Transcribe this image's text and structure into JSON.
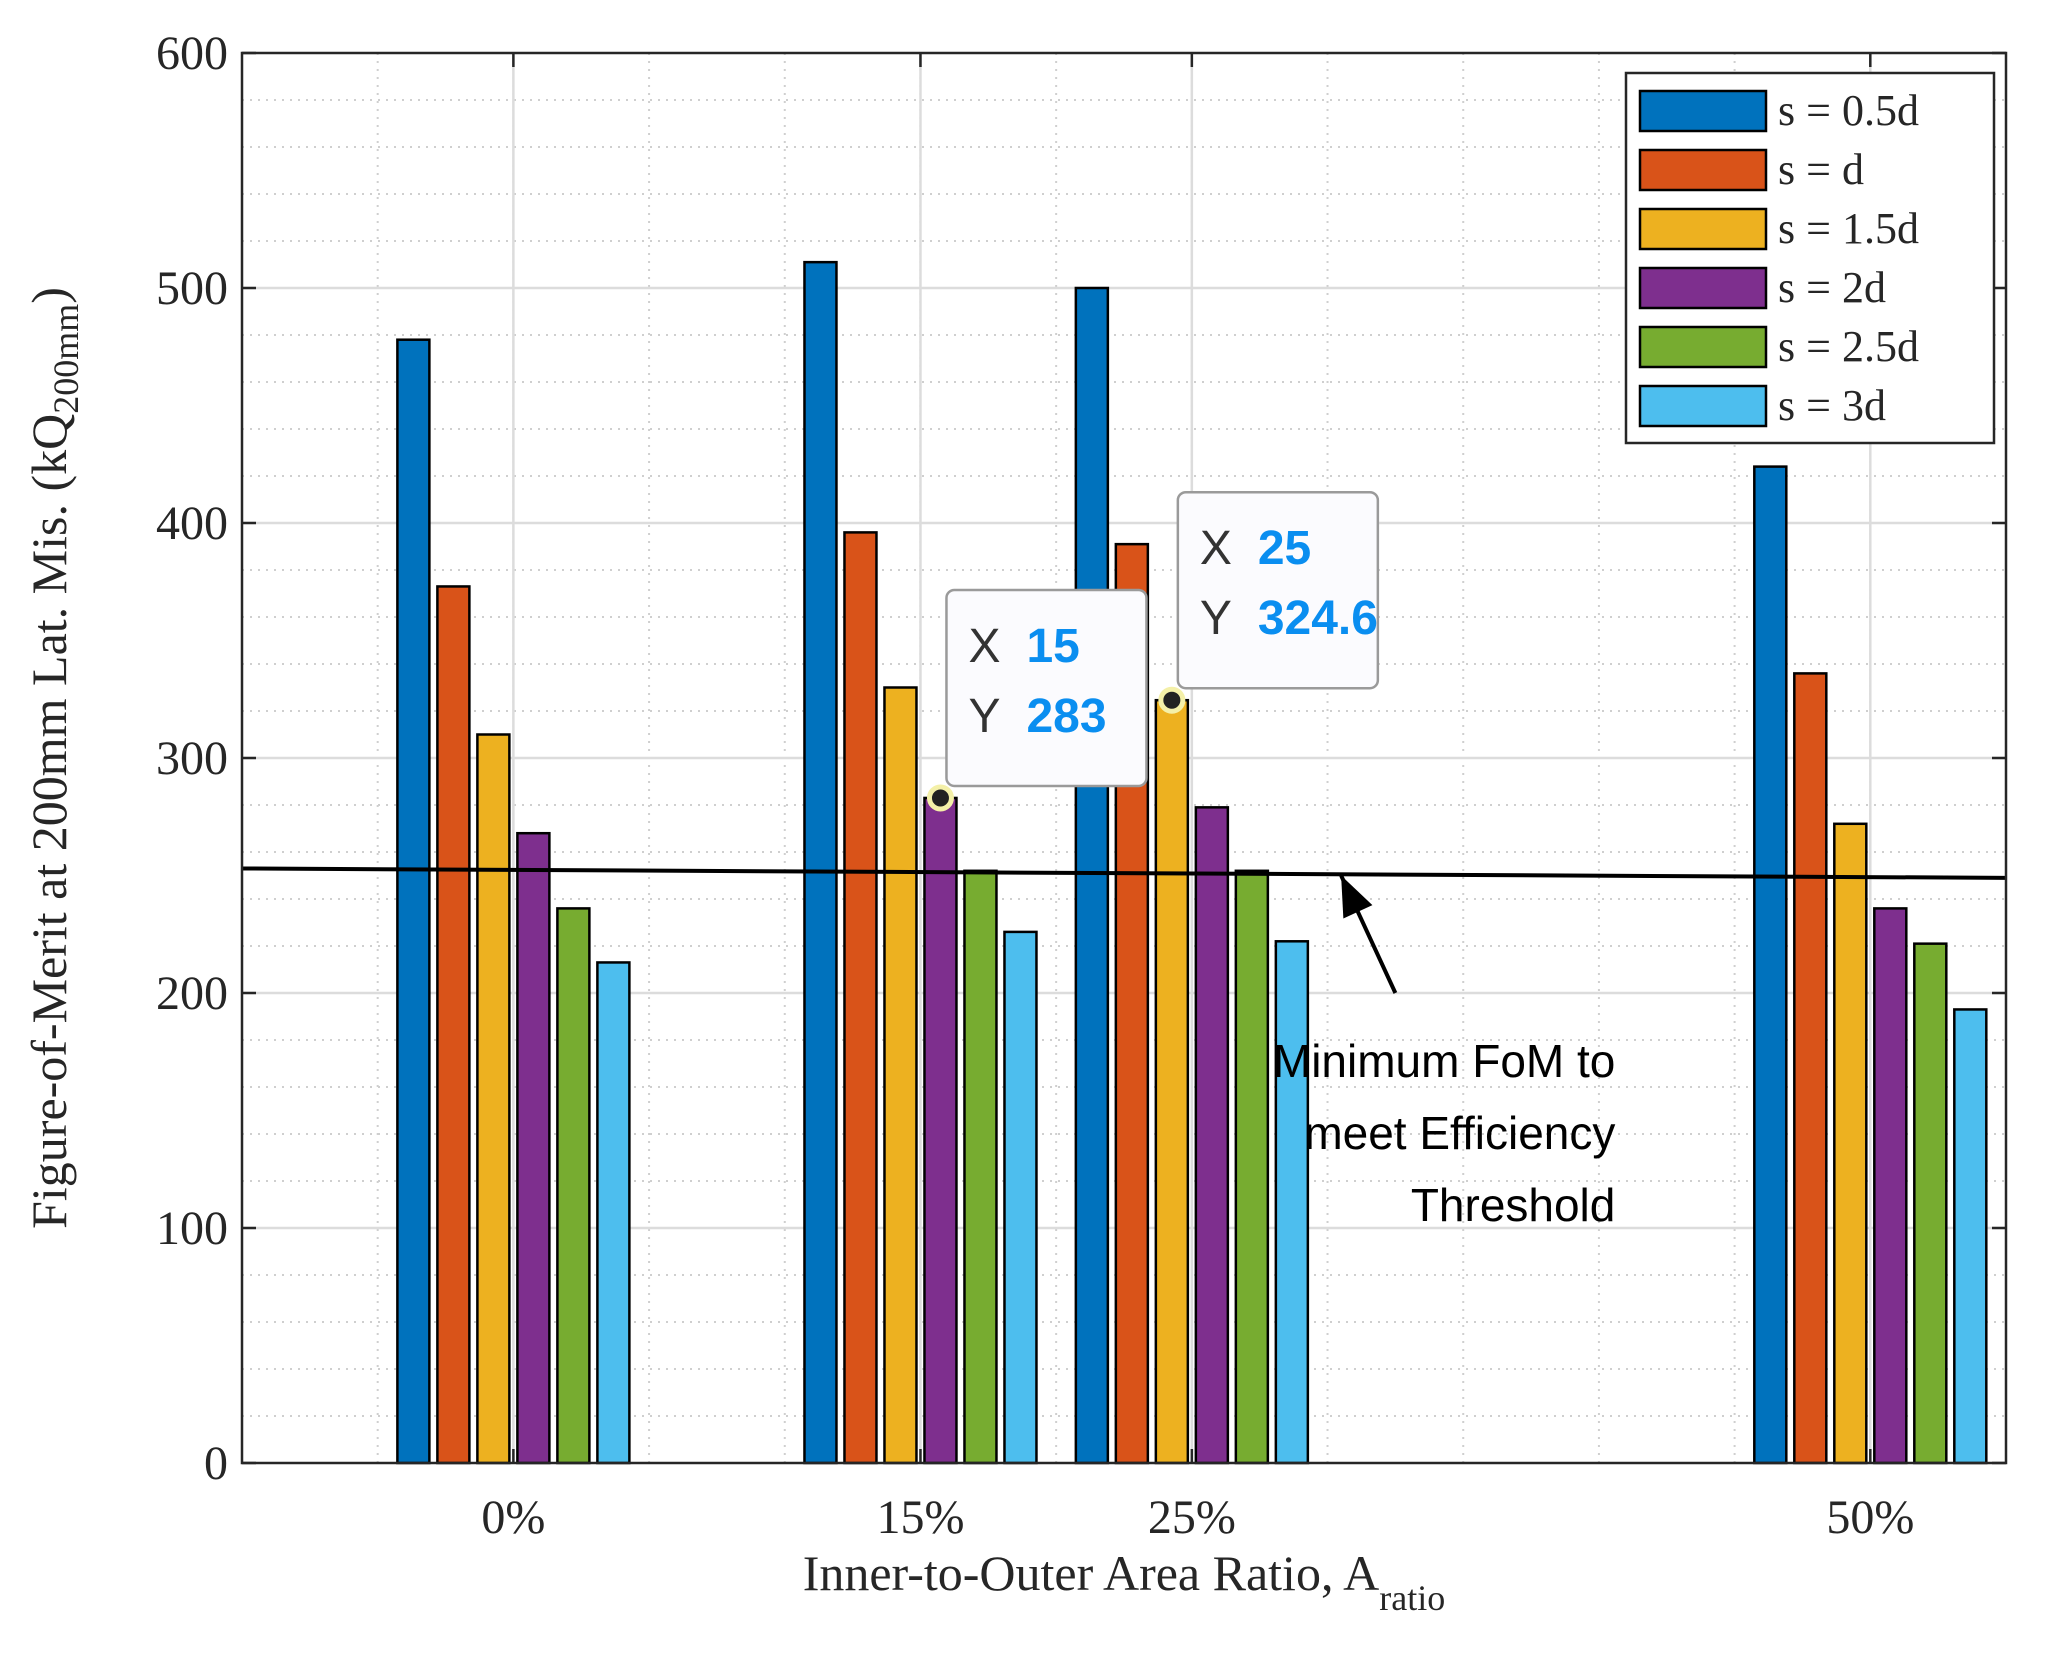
{
  "chart_data": {
    "type": "bar",
    "x": [
      0,
      15,
      25,
      50
    ],
    "categories": [
      "0%",
      "15%",
      "25%",
      "50%"
    ],
    "xlabel": "Inner-to-Outer Area Ratio, A",
    "xlabel_sub": "ratio",
    "ylabel": "Figure-of-Merit at 200mm Lat. Mis. (kQ",
    "ylabel_sub": "200mm",
    "ylabel_end": ")",
    "xlim": [
      -10,
      55
    ],
    "ylim": [
      0,
      600
    ],
    "yticks": [
      0,
      100,
      200,
      300,
      400,
      500,
      600
    ],
    "yticklabels": [
      "0",
      "100",
      "200",
      "300",
      "400",
      "500",
      "600"
    ],
    "grid": true,
    "minor_grid": true,
    "legend_position": "top-right",
    "series": [
      {
        "name": "s = 0.5d",
        "color": "#0072BD",
        "values": [
          478,
          511,
          500,
          424
        ]
      },
      {
        "name": "s = d",
        "color": "#D95319",
        "values": [
          373,
          396,
          391,
          336
        ]
      },
      {
        "name": "s = 1.5d",
        "color": "#EDB120",
        "values": [
          310,
          330,
          324.6,
          272
        ]
      },
      {
        "name": "s = 2d",
        "color": "#7E2F8E",
        "values": [
          268,
          283,
          279,
          236
        ]
      },
      {
        "name": "s = 2.5d",
        "color": "#77AC30",
        "values": [
          236,
          252,
          252,
          221
        ]
      },
      {
        "name": "s = 3d",
        "color": "#4DBEEE",
        "values": [
          213,
          226,
          222,
          193
        ]
      }
    ],
    "threshold_line": {
      "x": [
        -10,
        55
      ],
      "y": [
        253,
        249
      ]
    },
    "annotation": {
      "lines": [
        "Minimum FoM to",
        "meet Efficiency",
        "Threshold"
      ],
      "arrow_tip": {
        "x": 30.5,
        "y": 250
      },
      "arrow_tail": {
        "x": 32.5,
        "y": 200
      }
    },
    "datatips": [
      {
        "x_label": "X",
        "x_value": "15",
        "y_label": "Y",
        "y_value": "283",
        "series_index": 3,
        "category_index": 1
      },
      {
        "x_label": "X",
        "x_value": "25",
        "y_label": "Y",
        "y_value": "324.6",
        "series_index": 2,
        "category_index": 2
      }
    ]
  }
}
